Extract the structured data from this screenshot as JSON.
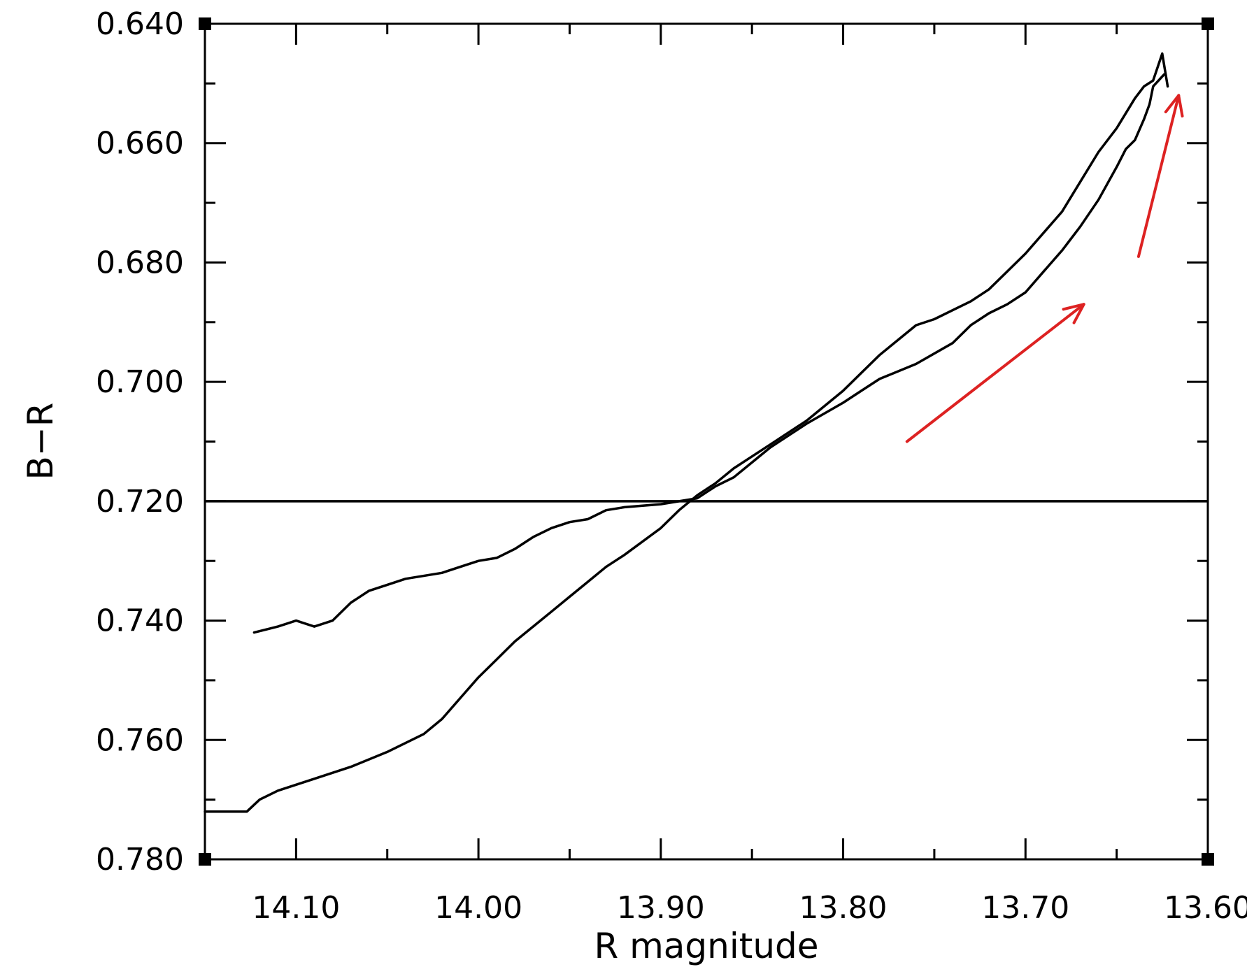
{
  "chart_data": {
    "type": "line",
    "title": "",
    "xlabel": "R magnitude",
    "ylabel": "B−R",
    "xlim": [
      14.15,
      13.6
    ],
    "ylim": [
      0.78,
      0.64
    ],
    "x_reversed": true,
    "y_reversed": true,
    "x_ticks": [
      14.1,
      14.0,
      13.9,
      13.8,
      13.7,
      13.6
    ],
    "x_tick_labels": [
      "14.10",
      "14.00",
      "13.90",
      "13.80",
      "13.70",
      "13.60"
    ],
    "x_minor_ticks": [
      14.05,
      13.95,
      13.85,
      13.75,
      13.65
    ],
    "y_ticks": [
      0.64,
      0.66,
      0.68,
      0.7,
      0.72,
      0.74,
      0.76,
      0.78
    ],
    "y_tick_labels": [
      "0.640",
      "0.660",
      "0.680",
      "0.700",
      "0.720",
      "0.740",
      "0.760",
      "0.780"
    ],
    "y_minor_ticks": [
      0.65,
      0.67,
      0.69,
      0.71,
      0.73,
      0.75,
      0.77
    ],
    "grid": false,
    "reference_line": {
      "y": 0.72,
      "color": "#000000"
    },
    "series": [
      {
        "color": "#000000",
        "x": [
          14.123,
          14.11,
          14.1,
          14.09,
          14.08,
          14.07,
          14.06,
          14.05,
          14.04,
          14.02,
          14.01,
          14.0,
          13.99,
          13.98,
          13.97,
          13.96,
          13.95,
          13.94,
          13.93,
          13.92,
          13.9,
          13.88,
          13.87,
          13.86,
          13.85,
          13.84,
          13.82,
          13.8,
          13.79,
          13.78,
          13.76,
          13.74,
          13.73,
          13.72,
          13.71,
          13.7,
          13.69,
          13.68,
          13.67,
          13.66,
          13.65,
          13.645,
          13.64,
          13.635,
          13.632,
          13.63,
          13.627,
          13.624
        ],
        "y": [
          0.742,
          0.741,
          0.74,
          0.741,
          0.74,
          0.737,
          0.735,
          0.734,
          0.733,
          0.732,
          0.731,
          0.73,
          0.7295,
          0.728,
          0.726,
          0.7245,
          0.7235,
          0.723,
          0.7215,
          0.721,
          0.7205,
          0.7195,
          0.7175,
          0.716,
          0.7135,
          0.711,
          0.707,
          0.7035,
          0.7015,
          0.6995,
          0.697,
          0.6935,
          0.6905,
          0.6885,
          0.687,
          0.685,
          0.6815,
          0.678,
          0.674,
          0.6695,
          0.664,
          0.661,
          0.6595,
          0.656,
          0.6535,
          0.6505,
          0.6495,
          0.6485
        ]
      },
      {
        "color": "#000000",
        "x": [
          14.15,
          14.127,
          14.12,
          14.11,
          14.09,
          14.07,
          14.05,
          14.03,
          14.02,
          14.01,
          14.0,
          13.99,
          13.98,
          13.97,
          13.96,
          13.95,
          13.94,
          13.93,
          13.92,
          13.9,
          13.89,
          13.88,
          13.87,
          13.86,
          13.85,
          13.84,
          13.82,
          13.8,
          13.79,
          13.78,
          13.77,
          13.76,
          13.75,
          13.74,
          13.73,
          13.72,
          13.71,
          13.7,
          13.69,
          13.68,
          13.67,
          13.66,
          13.65,
          13.64,
          13.635,
          13.63,
          13.625,
          13.622
        ],
        "y": [
          0.772,
          0.772,
          0.77,
          0.7685,
          0.7665,
          0.7645,
          0.762,
          0.759,
          0.7565,
          0.753,
          0.7495,
          0.7465,
          0.7435,
          0.741,
          0.7385,
          0.736,
          0.7335,
          0.731,
          0.729,
          0.7245,
          0.7215,
          0.719,
          0.717,
          0.7145,
          0.7125,
          0.7105,
          0.7065,
          0.7015,
          0.6985,
          0.6955,
          0.693,
          0.6905,
          0.6895,
          0.688,
          0.6865,
          0.6845,
          0.6815,
          0.6785,
          0.675,
          0.6715,
          0.6665,
          0.6615,
          0.6575,
          0.6525,
          0.6505,
          0.6495,
          0.645,
          0.6505
        ]
      }
    ],
    "annotations": [
      {
        "type": "arrow",
        "color": "#dd2222",
        "from": {
          "x": 13.765,
          "y": 0.71
        },
        "to": {
          "x": 13.668,
          "y": 0.687
        }
      },
      {
        "type": "arrow",
        "color": "#dd2222",
        "from": {
          "x": 13.638,
          "y": 0.679
        },
        "to": {
          "x": 13.616,
          "y": 0.652
        }
      }
    ]
  }
}
